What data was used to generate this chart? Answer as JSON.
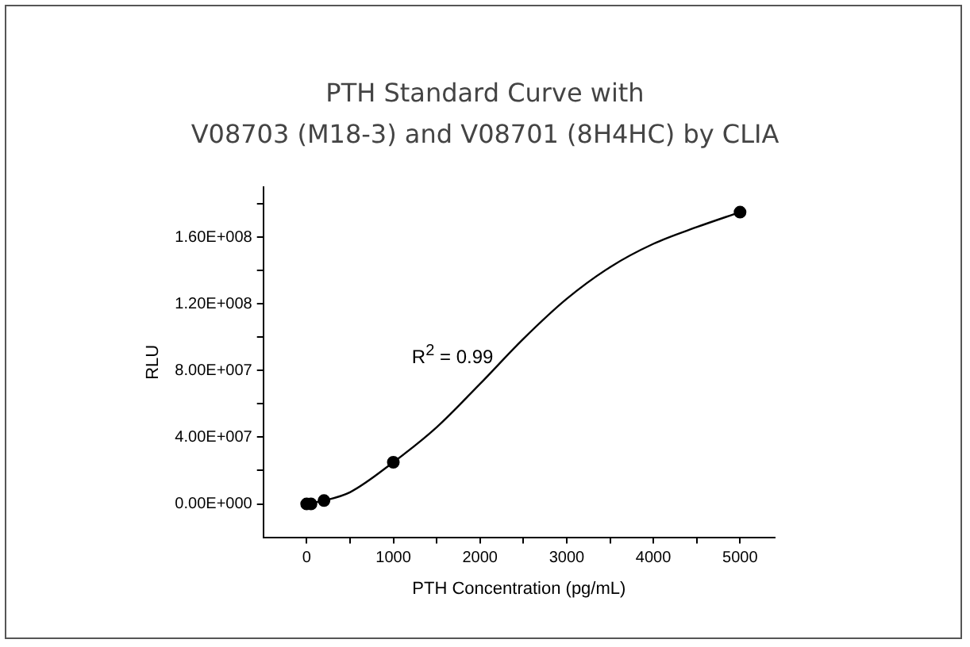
{
  "chart_data": {
    "type": "scatter",
    "title": "PTH Standard Curve with\nV08703 (M18-3) and V08701 (8H4HC) by CLIA",
    "xlabel": "PTH Concentration (pg/mL)",
    "ylabel": "RLU",
    "annotations": [
      "R$^{2}$ = 0.99"
    ],
    "series": [
      {
        "color": "#000000",
        "x": [
          0,
          50,
          200,
          1000,
          5000
        ],
        "values": [
          0,
          0,
          2000000,
          25000000,
          175000000
        ]
      },
      {
        "type": "line",
        "color": "#000000",
        "marker": "none",
        "x": [
          0,
          200,
          500,
          1000,
          1500,
          2000,
          2500,
          3000,
          3500,
          4000,
          4500,
          5000
        ],
        "values": [
          0,
          2000000,
          7000000,
          25000000,
          46000000,
          72000000,
          99000000,
          123000000,
          142000000,
          156000000,
          166000000,
          175000000
        ]
      }
    ],
    "marker": "circle",
    "grid": false,
    "legend": false,
    "xlim": [
      -500,
      5400
    ],
    "xticks": [
      0,
      {
        "value": 500,
        "label": null
      },
      1000,
      {
        "value": 1500,
        "label": null
      },
      2000,
      {
        "value": 2500,
        "label": null
      },
      3000,
      {
        "value": 3500,
        "label": null
      },
      4000,
      {
        "value": 4500,
        "label": null
      },
      5000
    ],
    "ylim": [
      -20000000,
      190000000
    ],
    "yticks": [
      {
        "value": 0,
        "label": "0.00E+000"
      },
      {
        "value": 20000000,
        "label": null
      },
      {
        "value": 40000000,
        "label": "4.00E+007"
      },
      {
        "value": 60000000,
        "label": null
      },
      {
        "value": 80000000,
        "label": "8.00E+007"
      },
      {
        "value": 100000000,
        "label": null
      },
      {
        "value": 120000000,
        "label": "1.20E+008"
      },
      {
        "value": 140000000,
        "label": null
      },
      {
        "value": 160000000,
        "label": "1.60E+008"
      },
      {
        "value": 180000000,
        "label": null
      }
    ]
  }
}
